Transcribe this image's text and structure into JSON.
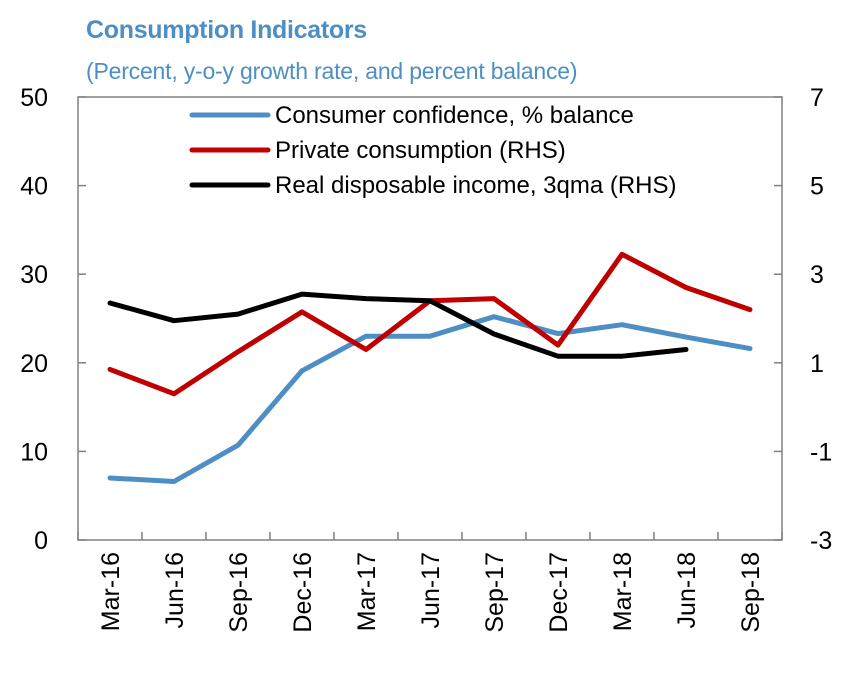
{
  "chart_data": {
    "type": "line",
    "title": "Consumption Indicators",
    "subtitle": "(Percent, y-o-y growth rate, and percent balance)",
    "x": [
      "Mar-16",
      "Jun-16",
      "Sep-16",
      "Dec-16",
      "Mar-17",
      "Jun-17",
      "Sep-17",
      "Dec-17",
      "Mar-18",
      "Jun-18",
      "Sep-18"
    ],
    "y_left": {
      "min": 0,
      "max": 50,
      "ticks": [
        0,
        10,
        20,
        30,
        40,
        50
      ]
    },
    "y_right": {
      "min": -3,
      "max": 7,
      "ticks": [
        -3,
        -1,
        1,
        3,
        5,
        7
      ]
    },
    "grid": false,
    "legend_position": "top-center",
    "series": [
      {
        "name": "Consumer confidence, % balance",
        "axis": "left",
        "color": "#4d8ec4",
        "values": [
          7.0,
          6.6,
          10.7,
          19.1,
          23.0,
          23.0,
          25.2,
          23.3,
          24.3,
          22.9,
          21.6
        ]
      },
      {
        "name": "Private consumption (RHS)",
        "axis": "right",
        "color": "#c00000",
        "values": [
          0.85,
          0.3,
          1.25,
          2.15,
          1.3,
          2.4,
          2.45,
          1.4,
          3.45,
          2.7,
          2.2
        ]
      },
      {
        "name": "Real disposable income, 3qma (RHS)",
        "axis": "right",
        "color": "#000000",
        "values": [
          2.35,
          1.95,
          2.1,
          2.55,
          2.45,
          2.4,
          1.65,
          1.15,
          1.15,
          1.3,
          null
        ]
      }
    ]
  }
}
